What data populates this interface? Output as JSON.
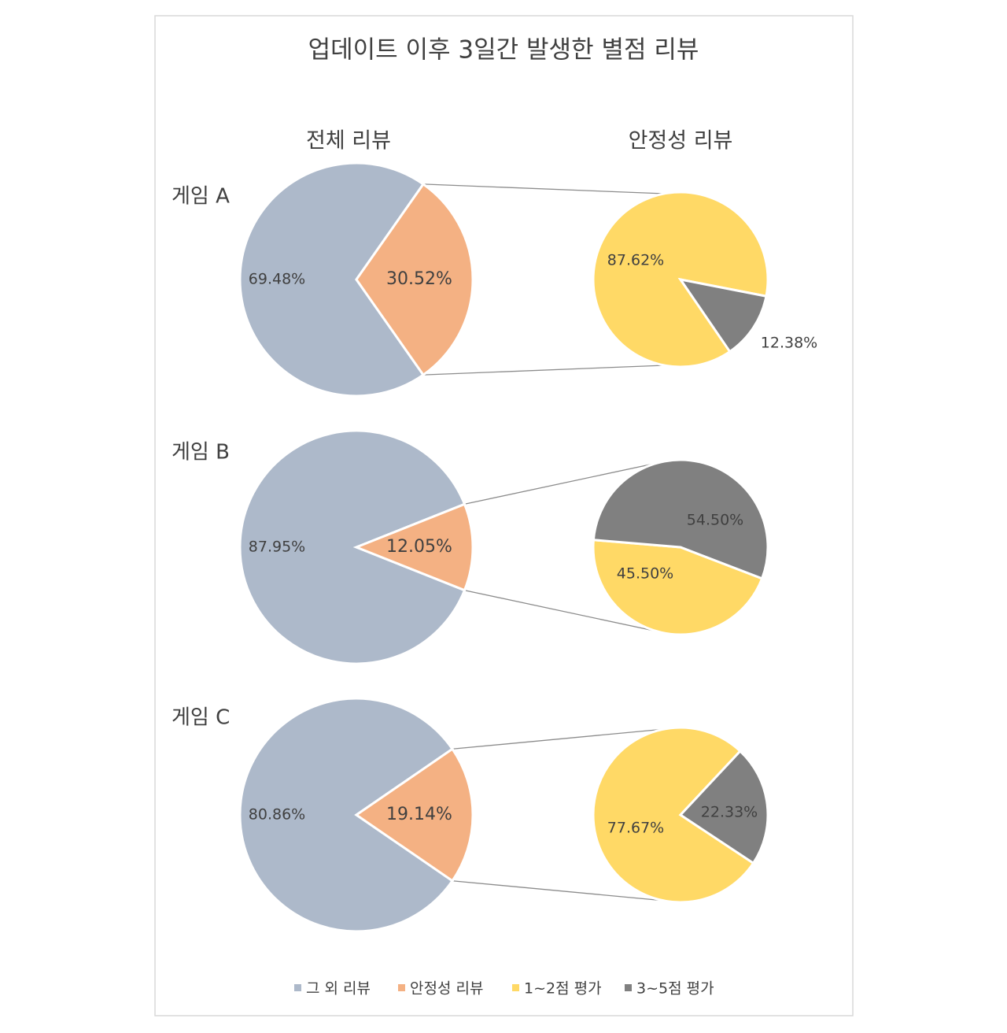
{
  "chart_data": {
    "type": "pie_of_pie",
    "title": "업데이트 이후 3일간 발생한 별점 리뷰",
    "columns": [
      "전체 리뷰",
      "안정성 리뷰"
    ],
    "legend": [
      {
        "name": "그 외 리뷰",
        "color": "#adb9ca"
      },
      {
        "name": "안정성 리뷰",
        "color": "#f4b183"
      },
      {
        "name": "1~2점 평가",
        "color": "#ffd966"
      },
      {
        "name": "3~5점 평가",
        "color": "#808080"
      }
    ],
    "rows": [
      {
        "label": "게임 A",
        "main": {
          "values": [
            69.48,
            30.52
          ],
          "value_labels": [
            "69.48%",
            "30.52%"
          ]
        },
        "sub": {
          "values": [
            87.62,
            12.38
          ],
          "value_labels": [
            "87.62%",
            "12.38%"
          ]
        }
      },
      {
        "label": "게임 B",
        "main": {
          "values": [
            87.95,
            12.05
          ],
          "value_labels": [
            "87.95%",
            "12.05%"
          ]
        },
        "sub": {
          "values": [
            45.5,
            54.5
          ],
          "value_labels": [
            "45.50%",
            "54.50%"
          ]
        }
      },
      {
        "label": "게임 C",
        "main": {
          "values": [
            80.86,
            19.14
          ],
          "value_labels": [
            "80.86%",
            "19.14%"
          ]
        },
        "sub": {
          "values": [
            77.67,
            22.33
          ],
          "value_labels": [
            "77.67%",
            "22.33%"
          ]
        }
      }
    ]
  }
}
